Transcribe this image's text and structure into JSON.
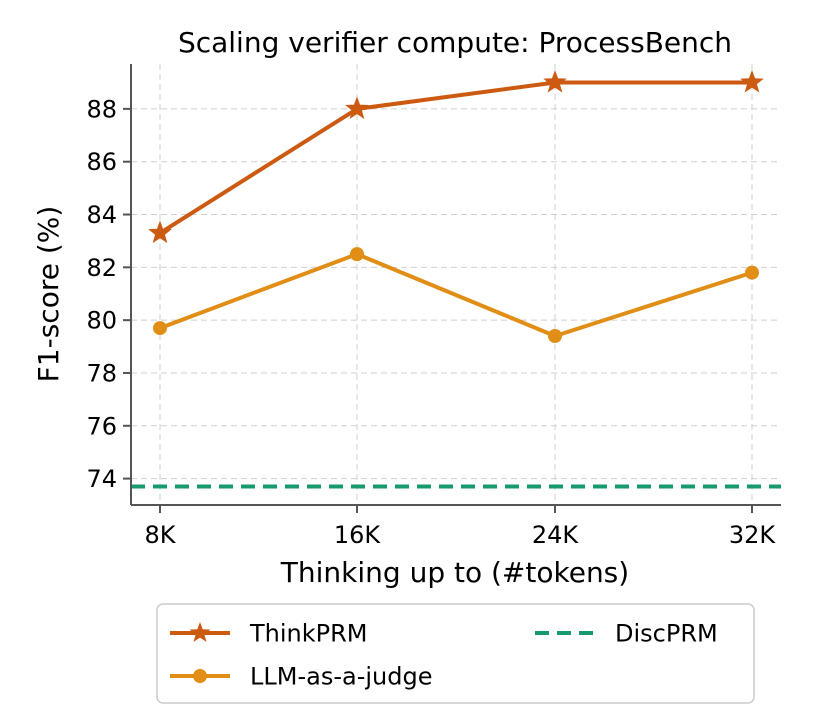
{
  "chart_data": {
    "type": "line",
    "title": "Scaling verifier compute: ProcessBench",
    "xlabel": "Thinking up to (#tokens)",
    "ylabel": "F1-score (%)",
    "categories": [
      "8K",
      "16K",
      "24K",
      "32K"
    ],
    "y_ticks": [
      74,
      76,
      78,
      80,
      82,
      84,
      86,
      88
    ],
    "ylim": [
      73.0,
      89.7
    ],
    "grid": true,
    "legend_position": "bottom",
    "series": [
      {
        "name": "ThinkPRM",
        "values": [
          83.3,
          88.0,
          89.0,
          89.0
        ],
        "color": "#cc5a10",
        "marker": "star"
      },
      {
        "name": "LLM-as-a-judge",
        "values": [
          79.7,
          82.5,
          79.4,
          81.8
        ],
        "color": "#e08e16",
        "marker": "circle"
      }
    ],
    "reference_lines": [
      {
        "name": "DiscPRM",
        "value": 73.7,
        "color": "#179a6e",
        "style": "dashed"
      }
    ]
  }
}
